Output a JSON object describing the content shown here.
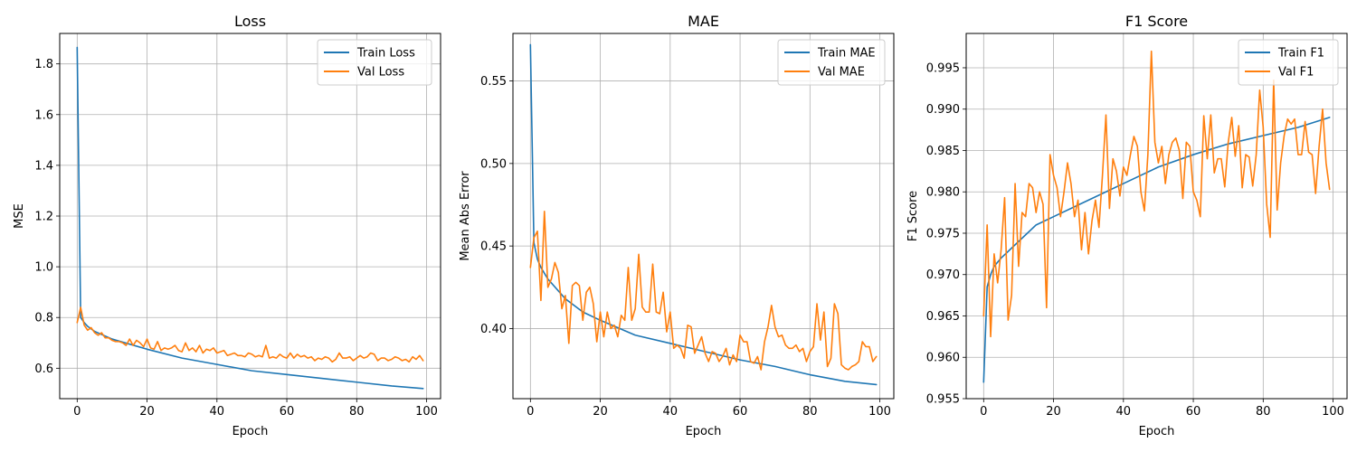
{
  "chart_data": [
    {
      "type": "line",
      "title": "Loss",
      "xlabel": "Epoch",
      "ylabel": "MSE",
      "xlim": [
        -5,
        104
      ],
      "ylim": [
        0.48,
        1.92
      ],
      "xticks": [
        0,
        20,
        40,
        60,
        80,
        100
      ],
      "yticks": [
        0.6,
        0.8,
        1.0,
        1.2,
        1.4,
        1.6,
        1.8
      ],
      "ytick_decimals": 1,
      "grid": true,
      "legend": "top-right",
      "series": [
        {
          "name": "Train Loss",
          "color": "#1f77b4",
          "x": [
            0,
            1,
            2,
            3,
            5,
            10,
            15,
            20,
            30,
            40,
            50,
            60,
            70,
            80,
            90,
            99
          ],
          "y": [
            1.865,
            0.8,
            0.78,
            0.765,
            0.745,
            0.715,
            0.695,
            0.675,
            0.64,
            0.615,
            0.59,
            0.575,
            0.56,
            0.545,
            0.53,
            0.52
          ]
        },
        {
          "name": "Val Loss",
          "color": "#ff7f0e",
          "x": [
            0,
            1,
            2,
            3,
            4,
            5,
            6,
            7,
            8,
            9,
            10,
            11,
            12,
            13,
            14,
            15,
            16,
            17,
            18,
            19,
            20,
            21,
            22,
            23,
            24,
            25,
            26,
            27,
            28,
            29,
            30,
            31,
            32,
            33,
            34,
            35,
            36,
            37,
            38,
            39,
            40,
            41,
            42,
            43,
            44,
            45,
            46,
            47,
            48,
            49,
            50,
            51,
            52,
            53,
            54,
            55,
            56,
            57,
            58,
            59,
            60,
            61,
            62,
            63,
            64,
            65,
            66,
            67,
            68,
            69,
            70,
            71,
            72,
            73,
            74,
            75,
            76,
            77,
            78,
            79,
            80,
            81,
            82,
            83,
            84,
            85,
            86,
            87,
            88,
            89,
            90,
            91,
            92,
            93,
            94,
            95,
            96,
            97,
            98,
            99
          ],
          "y": [
            0.78,
            0.84,
            0.77,
            0.75,
            0.76,
            0.74,
            0.73,
            0.74,
            0.72,
            0.72,
            0.71,
            0.705,
            0.705,
            0.7,
            0.69,
            0.715,
            0.69,
            0.71,
            0.7,
            0.685,
            0.715,
            0.68,
            0.675,
            0.705,
            0.67,
            0.68,
            0.675,
            0.68,
            0.69,
            0.67,
            0.665,
            0.7,
            0.67,
            0.68,
            0.665,
            0.69,
            0.66,
            0.675,
            0.67,
            0.68,
            0.66,
            0.665,
            0.67,
            0.65,
            0.655,
            0.66,
            0.65,
            0.65,
            0.645,
            0.66,
            0.655,
            0.645,
            0.65,
            0.645,
            0.69,
            0.64,
            0.645,
            0.64,
            0.655,
            0.645,
            0.64,
            0.66,
            0.64,
            0.655,
            0.645,
            0.65,
            0.64,
            0.645,
            0.63,
            0.64,
            0.635,
            0.645,
            0.64,
            0.625,
            0.635,
            0.66,
            0.64,
            0.64,
            0.645,
            0.63,
            0.64,
            0.65,
            0.64,
            0.645,
            0.66,
            0.655,
            0.63,
            0.64,
            0.64,
            0.63,
            0.635,
            0.645,
            0.64,
            0.63,
            0.635,
            0.625,
            0.645,
            0.635,
            0.65,
            0.63
          ]
        }
      ]
    },
    {
      "type": "line",
      "title": "MAE",
      "xlabel": "Epoch",
      "ylabel": "Mean Abs Error",
      "xlim": [
        -5,
        104
      ],
      "ylim": [
        0.3575,
        0.5788
      ],
      "xticks": [
        0,
        20,
        40,
        60,
        80,
        100
      ],
      "yticks": [
        0.4,
        0.45,
        0.5,
        0.55
      ],
      "ytick_decimals": 2,
      "grid": true,
      "legend": "top-right",
      "series": [
        {
          "name": "Train MAE",
          "color": "#1f77b4",
          "x": [
            0,
            1,
            2,
            3,
            5,
            10,
            15,
            20,
            30,
            40,
            50,
            60,
            70,
            80,
            90,
            99
          ],
          "y": [
            0.572,
            0.452,
            0.442,
            0.437,
            0.43,
            0.418,
            0.41,
            0.405,
            0.396,
            0.391,
            0.386,
            0.381,
            0.377,
            0.372,
            0.368,
            0.366
          ]
        },
        {
          "name": "Val MAE",
          "color": "#ff7f0e",
          "x": [
            0,
            1,
            2,
            3,
            4,
            5,
            6,
            7,
            8,
            9,
            10,
            11,
            12,
            13,
            14,
            15,
            16,
            17,
            18,
            19,
            20,
            21,
            22,
            23,
            24,
            25,
            26,
            27,
            28,
            29,
            30,
            31,
            32,
            33,
            34,
            35,
            36,
            37,
            38,
            39,
            40,
            41,
            42,
            43,
            44,
            45,
            46,
            47,
            48,
            49,
            50,
            51,
            52,
            53,
            54,
            55,
            56,
            57,
            58,
            59,
            60,
            61,
            62,
            63,
            64,
            65,
            66,
            67,
            68,
            69,
            70,
            71,
            72,
            73,
            74,
            75,
            76,
            77,
            78,
            79,
            80,
            81,
            82,
            83,
            84,
            85,
            86,
            87,
            88,
            89,
            90,
            91,
            92,
            93,
            94,
            95,
            96,
            97,
            98,
            99
          ],
          "y": [
            0.437,
            0.455,
            0.459,
            0.417,
            0.471,
            0.425,
            0.43,
            0.44,
            0.434,
            0.412,
            0.42,
            0.391,
            0.426,
            0.428,
            0.426,
            0.405,
            0.422,
            0.425,
            0.415,
            0.392,
            0.41,
            0.395,
            0.41,
            0.4,
            0.402,
            0.395,
            0.408,
            0.405,
            0.437,
            0.405,
            0.412,
            0.445,
            0.413,
            0.41,
            0.41,
            0.439,
            0.41,
            0.409,
            0.422,
            0.398,
            0.41,
            0.388,
            0.39,
            0.388,
            0.382,
            0.402,
            0.401,
            0.385,
            0.39,
            0.395,
            0.385,
            0.38,
            0.386,
            0.385,
            0.38,
            0.383,
            0.388,
            0.378,
            0.384,
            0.38,
            0.396,
            0.392,
            0.392,
            0.38,
            0.379,
            0.383,
            0.375,
            0.392,
            0.401,
            0.414,
            0.401,
            0.395,
            0.396,
            0.39,
            0.388,
            0.388,
            0.39,
            0.386,
            0.388,
            0.38,
            0.386,
            0.389,
            0.415,
            0.393,
            0.41,
            0.377,
            0.382,
            0.415,
            0.409,
            0.378,
            0.376,
            0.375,
            0.377,
            0.378,
            0.38,
            0.392,
            0.389,
            0.389,
            0.38,
            0.383
          ]
        }
      ]
    },
    {
      "type": "line",
      "title": "F1 Score",
      "xlabel": "Epoch",
      "ylabel": "F1 Score",
      "xlim": [
        -5,
        104
      ],
      "ylim": [
        0.955,
        0.99915
      ],
      "xticks": [
        0,
        20,
        40,
        60,
        80,
        100
      ],
      "yticks": [
        0.955,
        0.96,
        0.965,
        0.97,
        0.975,
        0.98,
        0.985,
        0.99,
        0.995
      ],
      "ytick_decimals": 3,
      "grid": true,
      "legend": "top-right",
      "series": [
        {
          "name": "Train F1",
          "color": "#1f77b4",
          "x": [
            0,
            1,
            2,
            3,
            5,
            10,
            15,
            20,
            30,
            40,
            50,
            60,
            70,
            80,
            90,
            99
          ],
          "y": [
            0.957,
            0.9685,
            0.97,
            0.971,
            0.972,
            0.974,
            0.976,
            0.977,
            0.979,
            0.981,
            0.983,
            0.9845,
            0.9858,
            0.9868,
            0.9878,
            0.989
          ]
        },
        {
          "name": "Val F1",
          "color": "#ff7f0e",
          "x": [
            0,
            1,
            2,
            3,
            4,
            5,
            6,
            7,
            8,
            9,
            10,
            11,
            12,
            13,
            14,
            15,
            16,
            17,
            18,
            19,
            20,
            21,
            22,
            23,
            24,
            25,
            26,
            27,
            28,
            29,
            30,
            31,
            32,
            33,
            34,
            35,
            36,
            37,
            38,
            39,
            40,
            41,
            42,
            43,
            44,
            45,
            46,
            47,
            48,
            49,
            50,
            51,
            52,
            53,
            54,
            55,
            56,
            57,
            58,
            59,
            60,
            61,
            62,
            63,
            64,
            65,
            66,
            67,
            68,
            69,
            70,
            71,
            72,
            73,
            74,
            75,
            76,
            77,
            78,
            79,
            80,
            81,
            82,
            83,
            84,
            85,
            86,
            87,
            88,
            89,
            90,
            91,
            92,
            93,
            94,
            95,
            96,
            97,
            98,
            99
          ],
          "y": [
            0.965,
            0.976,
            0.9625,
            0.9725,
            0.969,
            0.973,
            0.9793,
            0.9645,
            0.9675,
            0.981,
            0.971,
            0.9775,
            0.977,
            0.981,
            0.9805,
            0.9775,
            0.98,
            0.9785,
            0.966,
            0.9845,
            0.982,
            0.9805,
            0.977,
            0.98,
            0.9835,
            0.981,
            0.977,
            0.979,
            0.973,
            0.9775,
            0.9725,
            0.9765,
            0.979,
            0.9757,
            0.982,
            0.9893,
            0.978,
            0.984,
            0.9825,
            0.9795,
            0.983,
            0.982,
            0.9845,
            0.9867,
            0.9855,
            0.98,
            0.9777,
            0.9845,
            0.997,
            0.986,
            0.9835,
            0.9855,
            0.981,
            0.9845,
            0.986,
            0.9865,
            0.985,
            0.9792,
            0.986,
            0.9855,
            0.98,
            0.979,
            0.977,
            0.9892,
            0.984,
            0.9893,
            0.9823,
            0.984,
            0.984,
            0.9806,
            0.986,
            0.989,
            0.9843,
            0.988,
            0.9805,
            0.9845,
            0.9842,
            0.9807,
            0.9845,
            0.9923,
            0.9878,
            0.9785,
            0.9745,
            0.9935,
            0.9778,
            0.9835,
            0.9868,
            0.9888,
            0.9882,
            0.9888,
            0.9845,
            0.9845,
            0.9885,
            0.9848,
            0.9845,
            0.9798,
            0.9855,
            0.99,
            0.9835,
            0.9803
          ]
        }
      ]
    }
  ]
}
